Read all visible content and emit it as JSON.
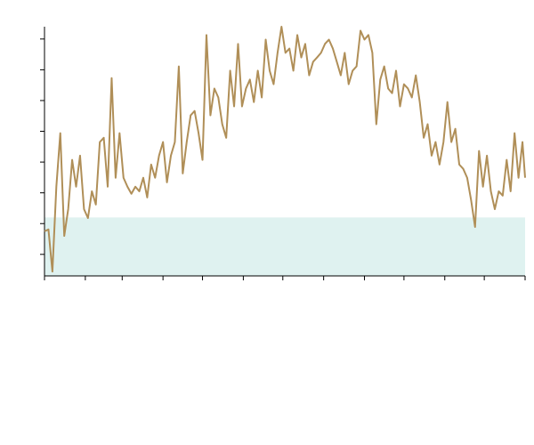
{
  "chart_data": {
    "type": "line",
    "x": [
      0,
      3,
      6,
      9,
      12,
      15,
      18,
      21,
      24,
      27,
      30,
      33,
      36,
      39,
      42,
      45,
      48,
      51,
      54,
      57,
      60,
      63,
      66,
      69,
      72,
      75,
      78,
      81,
      84,
      87,
      90,
      93,
      96,
      99,
      102,
      105,
      108,
      111,
      114,
      117,
      120,
      123,
      126,
      129,
      132,
      135,
      138,
      141,
      144,
      147,
      150,
      153,
      156,
      159,
      162,
      165,
      168,
      171,
      174,
      177,
      180,
      183,
      186,
      189,
      192,
      195,
      198,
      201,
      204,
      207,
      210,
      213,
      216,
      219,
      222,
      225,
      228,
      231,
      234,
      237,
      240,
      243,
      246,
      249,
      252,
      255,
      258,
      261,
      264,
      267,
      270,
      273,
      276,
      279,
      282,
      285,
      288,
      291,
      294,
      297,
      300,
      303,
      306,
      309,
      312,
      315,
      318,
      321,
      324,
      327,
      330,
      333,
      336,
      339,
      342,
      345,
      348,
      351,
      354,
      357,
      360,
      363,
      365
    ],
    "series": [
      {
        "color": "#b08f58",
        "values": [
          1.75,
          1.81,
          0.44,
          3.2,
          4.94,
          1.6,
          2.47,
          4.07,
          3.2,
          4.21,
          2.47,
          2.18,
          3.05,
          2.62,
          4.65,
          4.79,
          3.2,
          6.73,
          3.49,
          4.94,
          3.49,
          3.2,
          2.97,
          3.2,
          3.05,
          3.49,
          2.85,
          3.92,
          3.49,
          4.21,
          4.65,
          3.34,
          4.21,
          4.65,
          7.11,
          3.63,
          4.65,
          5.52,
          5.66,
          4.94,
          4.07,
          8.13,
          5.52,
          6.39,
          6.1,
          5.23,
          4.79,
          6.97,
          5.81,
          7.84,
          5.81,
          6.39,
          6.68,
          5.95,
          6.97,
          6.1,
          7.98,
          6.97,
          6.53,
          7.55,
          8.4,
          7.55,
          7.69,
          6.97,
          8.13,
          7.4,
          7.84,
          6.82,
          7.26,
          7.4,
          7.55,
          7.84,
          7.98,
          7.69,
          7.26,
          6.82,
          7.55,
          6.53,
          6.97,
          7.11,
          8.27,
          7.98,
          8.13,
          7.55,
          5.23,
          6.68,
          7.11,
          6.39,
          6.24,
          6.97,
          5.81,
          6.53,
          6.39,
          6.1,
          6.82,
          5.95,
          4.79,
          5.23,
          4.21,
          4.65,
          3.92,
          4.65,
          5.95,
          4.65,
          5.08,
          3.92,
          3.78,
          3.49,
          2.76,
          1.89,
          4.36,
          3.2,
          4.21,
          3.05,
          2.47,
          3.05,
          2.91,
          4.07,
          3.05,
          4.94,
          3.49,
          4.65,
          3.49
        ]
      }
    ],
    "band": {
      "from": 0.3,
      "to": 2.2,
      "color": "#dff2f0"
    },
    "xlim": [
      0,
      365
    ],
    "xticks": [
      0,
      31,
      59,
      90,
      120,
      151,
      181,
      212,
      243,
      273,
      304,
      334,
      365
    ],
    "ylim": [
      0.3,
      8.4
    ],
    "yticks": [
      1,
      2,
      3,
      4,
      5,
      6,
      7,
      8
    ]
  }
}
